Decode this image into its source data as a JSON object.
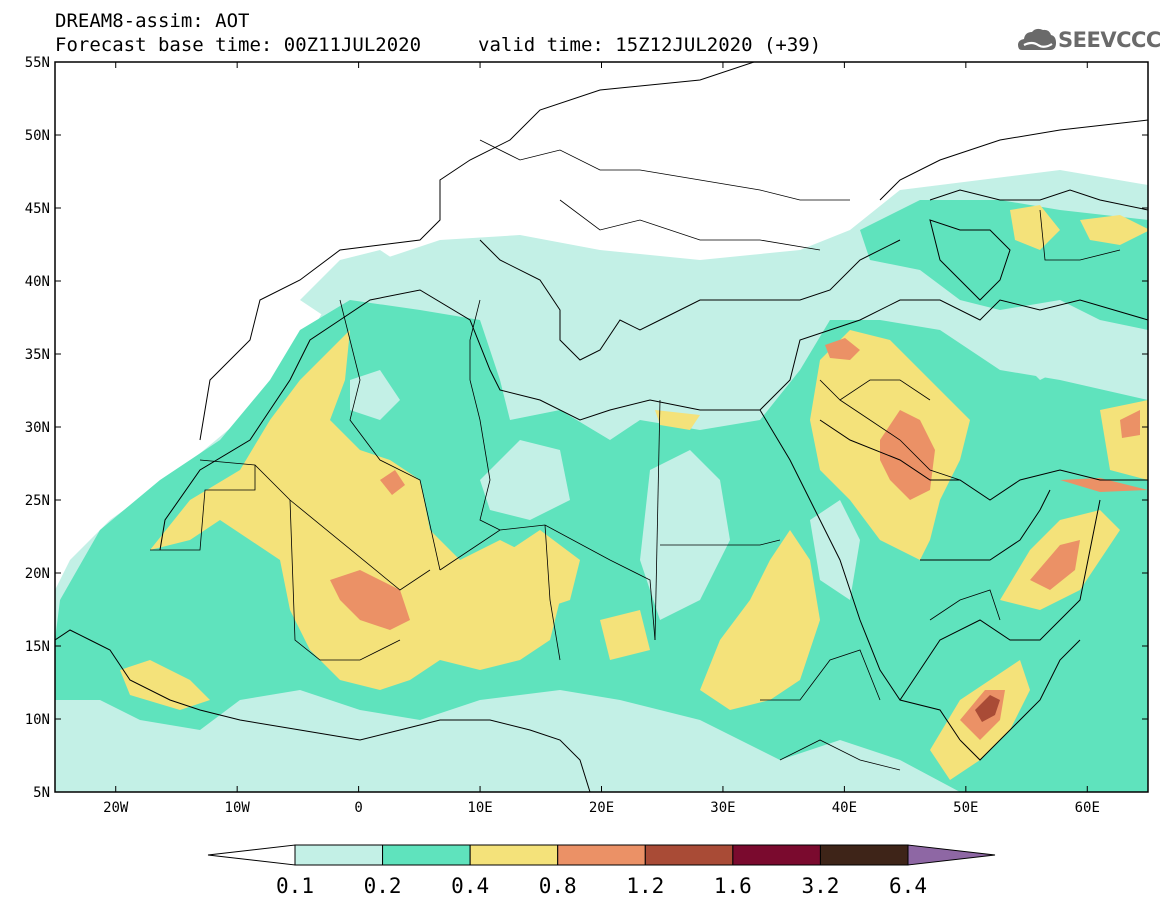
{
  "header": {
    "title": "DREAM8-assim: AOT",
    "base_time": "Forecast base time: 00Z11JUL2020",
    "valid_time": "valid time: 15Z12JUL2020 (+39)"
  },
  "logo": {
    "text": "SEEVCCC",
    "icon": "cloud-icon"
  },
  "map": {
    "lon_range": [
      -25,
      65
    ],
    "lat_range": [
      5,
      55
    ],
    "lon_ticks": [
      {
        "value": -20,
        "label": "20W"
      },
      {
        "value": -10,
        "label": "10W"
      },
      {
        "value": 0,
        "label": "0"
      },
      {
        "value": 10,
        "label": "10E"
      },
      {
        "value": 20,
        "label": "20E"
      },
      {
        "value": 30,
        "label": "30E"
      },
      {
        "value": 40,
        "label": "40E"
      },
      {
        "value": 50,
        "label": "50E"
      },
      {
        "value": 60,
        "label": "60E"
      }
    ],
    "lat_ticks": [
      {
        "value": 55,
        "label": "55N"
      },
      {
        "value": 50,
        "label": "50N"
      },
      {
        "value": 45,
        "label": "45N"
      },
      {
        "value": 40,
        "label": "40N"
      },
      {
        "value": 35,
        "label": "35N"
      },
      {
        "value": 30,
        "label": "30N"
      },
      {
        "value": 25,
        "label": "25N"
      },
      {
        "value": 20,
        "label": "20N"
      },
      {
        "value": 15,
        "label": "15N"
      },
      {
        "value": 10,
        "label": "10N"
      },
      {
        "value": 5,
        "label": "5N"
      }
    ]
  },
  "colorbar": {
    "levels": [
      "0.1",
      "0.2",
      "0.4",
      "0.8",
      "1.2",
      "1.6",
      "3.2",
      "6.4"
    ],
    "colors": [
      "#c3f0e6",
      "#5fe3bd",
      "#f4e27a",
      "#eb9166",
      "#a94b36",
      "#7a0a2e",
      "#3e2418",
      "#8e67a4"
    ],
    "low_color": "#ffffff"
  }
}
